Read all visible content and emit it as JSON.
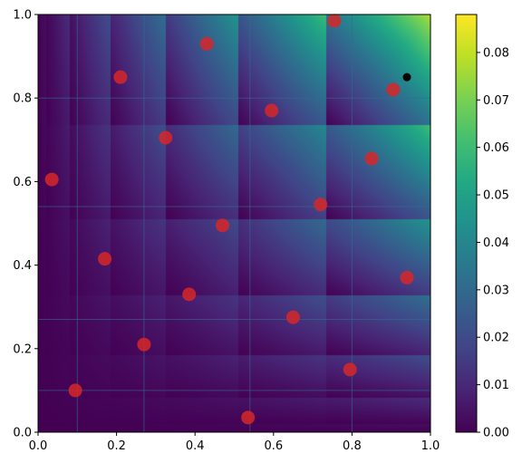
{
  "chart_data": {
    "type": "heatmap",
    "title": "",
    "xlabel": "",
    "ylabel": "",
    "xlim": [
      0,
      1
    ],
    "ylim": [
      0,
      1
    ],
    "x_ticks": [
      "0.0",
      "0.2",
      "0.4",
      "0.6",
      "0.8",
      "1.0"
    ],
    "y_ticks": [
      "0.0",
      "0.2",
      "0.4",
      "0.6",
      "0.8",
      "1.0"
    ],
    "grid": false,
    "colormap": "viridis",
    "colorbar": {
      "range": [
        0,
        0.088
      ],
      "ticks": [
        "0.00",
        "0.01",
        "0.02",
        "0.03",
        "0.04",
        "0.05",
        "0.06",
        "0.07",
        "0.08"
      ],
      "tick_values": [
        0,
        0.01,
        0.02,
        0.03,
        0.04,
        0.05,
        0.06,
        0.07,
        0.08
      ]
    },
    "cell_boundaries_x": [
      0,
      0.1,
      0.27,
      0.54,
      0.8,
      1
    ],
    "red_points": {
      "color": "#d62728",
      "points": [
        [
          0.035,
          0.605
        ],
        [
          0.095,
          0.1
        ],
        [
          0.17,
          0.415
        ],
        [
          0.21,
          0.85
        ],
        [
          0.27,
          0.21
        ],
        [
          0.325,
          0.705
        ],
        [
          0.385,
          0.33
        ],
        [
          0.43,
          0.93
        ],
        [
          0.47,
          0.495
        ],
        [
          0.535,
          0.035
        ],
        [
          0.595,
          0.77
        ],
        [
          0.65,
          0.275
        ],
        [
          0.72,
          0.545
        ],
        [
          0.755,
          0.985
        ],
        [
          0.795,
          0.15
        ],
        [
          0.85,
          0.655
        ],
        [
          0.905,
          0.82
        ],
        [
          0.94,
          0.37
        ]
      ]
    },
    "black_point": {
      "color": "#000000",
      "point": [
        0.94,
        0.85
      ]
    }
  }
}
